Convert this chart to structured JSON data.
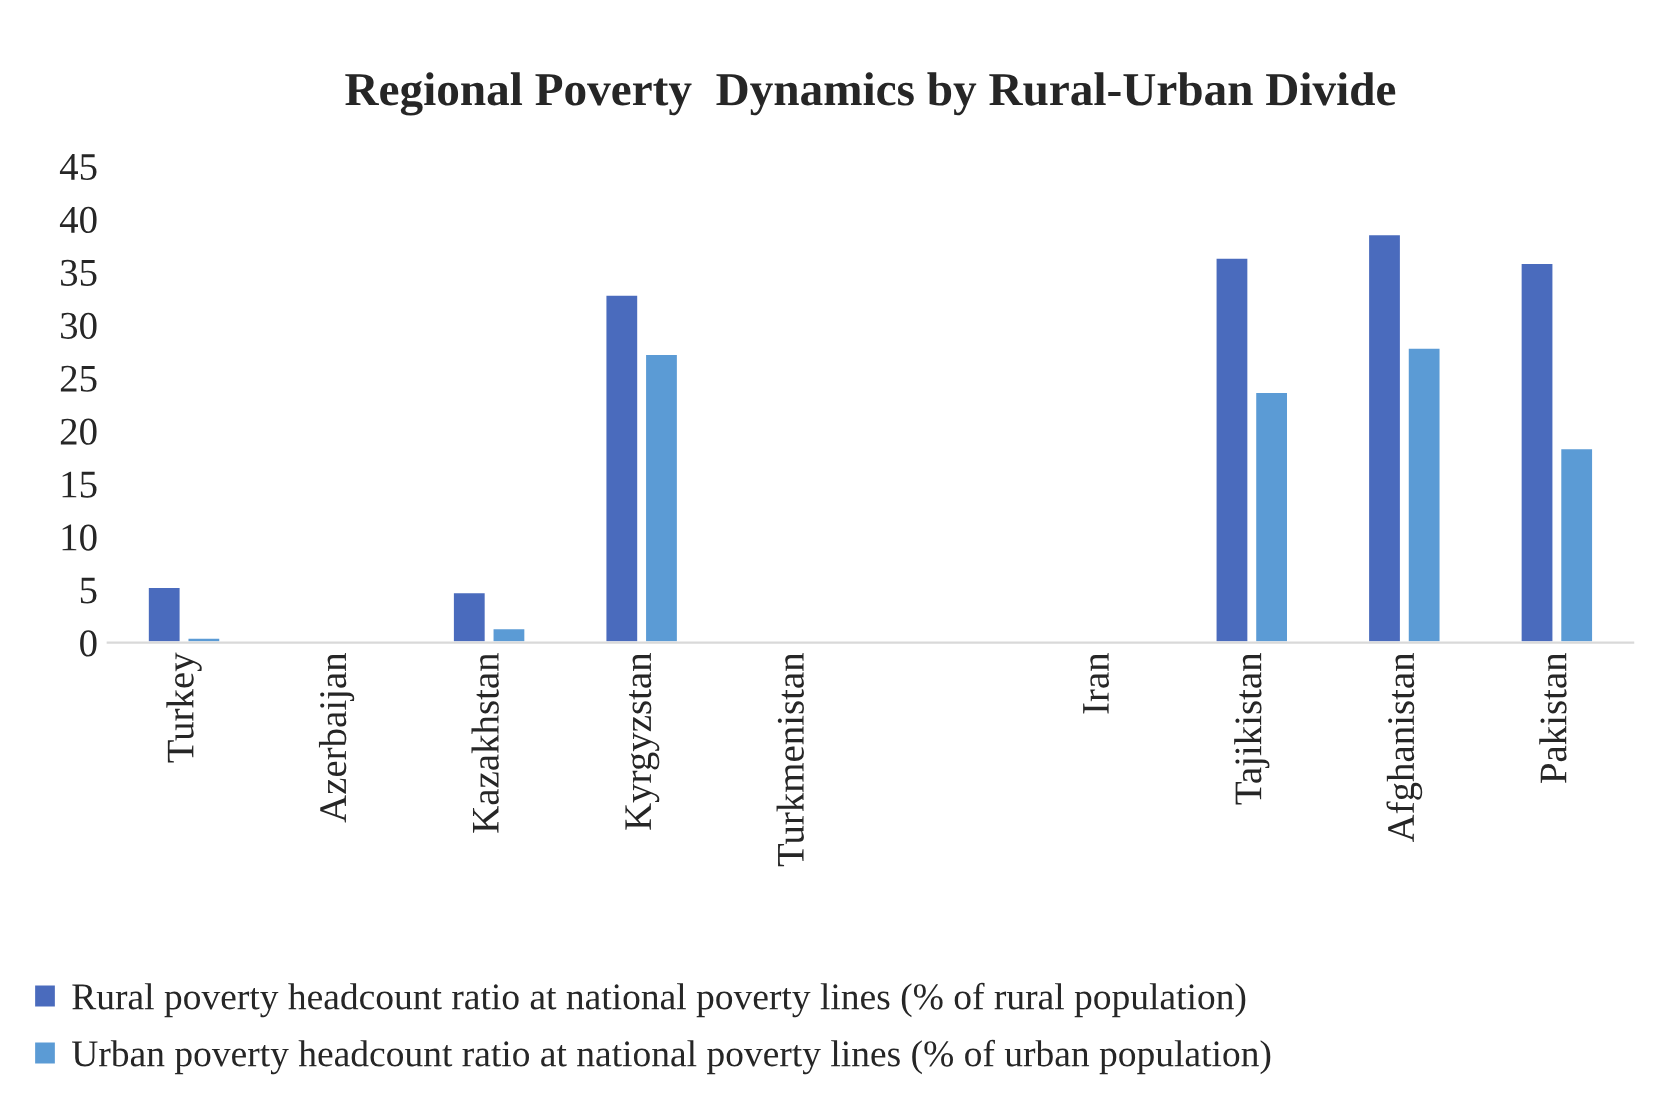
{
  "chart_data": {
    "type": "bar",
    "title": "Regional Poverty  Dynamics by Rural-Urban Divide",
    "categories": [
      "Turkey",
      "Azerbaijan",
      "Kazakhstan",
      "Kyrgyzstan",
      "Turkmenistan",
      null,
      "Iran",
      "Tajikistan",
      "Afghanistan",
      "Pakistan"
    ],
    "series": [
      {
        "name": "Rural poverty headcount ratio at national poverty lines (% of rural population)",
        "color": "#4a6bbd",
        "values": [
          5.3,
          null,
          4.8,
          32.9,
          null,
          null,
          null,
          36.4,
          38.6,
          35.9
        ]
      },
      {
        "name": "Urban poverty headcount ratio at national poverty lines (% of urban population)",
        "color": "#5b9bd5",
        "values": [
          0.5,
          null,
          1.4,
          27.3,
          null,
          null,
          null,
          23.7,
          27.9,
          18.4
        ]
      }
    ],
    "ylim": [
      0,
      45
    ],
    "yticks": [
      0,
      5,
      10,
      15,
      20,
      25,
      30,
      35,
      40,
      45
    ],
    "grid": false,
    "legend": "bottom"
  }
}
